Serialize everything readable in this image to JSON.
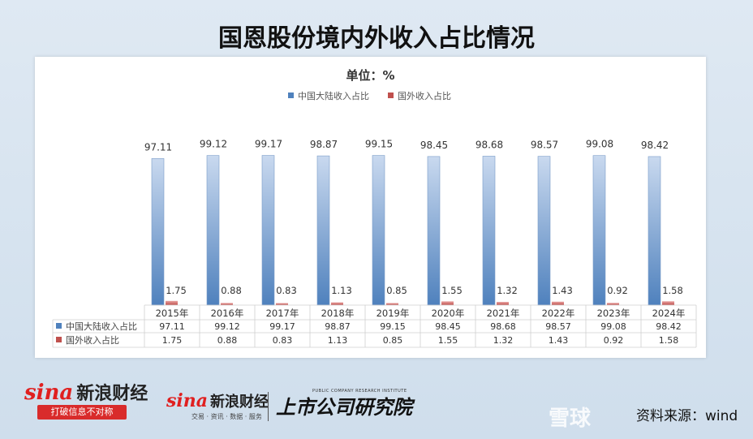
{
  "title": "国恩股份境内外收入占比情况",
  "unit_label": "单位：%",
  "source": "资料来源：wind",
  "footer": {
    "sina_mark": "sina",
    "sina_cn": "新浪财经",
    "slogan": "打破信息不对称",
    "sina_sub": "交易 · 资讯 · 数据 · 服务",
    "research": "上市公司研究院",
    "research_en": "PUBLIC COMPANY RESEARCH INSTITUTE",
    "xueqiu": "雪球"
  },
  "chart_data": {
    "type": "bar",
    "categories": [
      "2015年",
      "2016年",
      "2017年",
      "2018年",
      "2019年",
      "2020年",
      "2021年",
      "2022年",
      "2023年",
      "2024年"
    ],
    "series": [
      {
        "name": "中国大陆收入占比",
        "color": "#4f81bd",
        "values": [
          97.11,
          99.12,
          99.17,
          98.87,
          99.15,
          98.45,
          98.68,
          98.57,
          99.08,
          98.42
        ]
      },
      {
        "name": "国外收入占比",
        "color": "#c0504d",
        "values": [
          1.75,
          0.88,
          0.83,
          1.13,
          0.85,
          1.55,
          1.32,
          1.43,
          0.92,
          1.58
        ]
      }
    ],
    "value_labels": {
      "s0": [
        "97.11",
        "99.12",
        "99.17",
        "98.87",
        "99.15",
        "98.45",
        "98.68",
        "98.57",
        "99.08",
        "98.42"
      ],
      "s1": [
        "1.75",
        "0.88",
        "0.83",
        "1.13",
        "0.85",
        "1.55",
        "1.32",
        "1.43",
        "0.92",
        "1.58"
      ]
    },
    "ylim": [
      0,
      100
    ],
    "legend_position": "top",
    "has_data_table": true,
    "grid": false
  }
}
